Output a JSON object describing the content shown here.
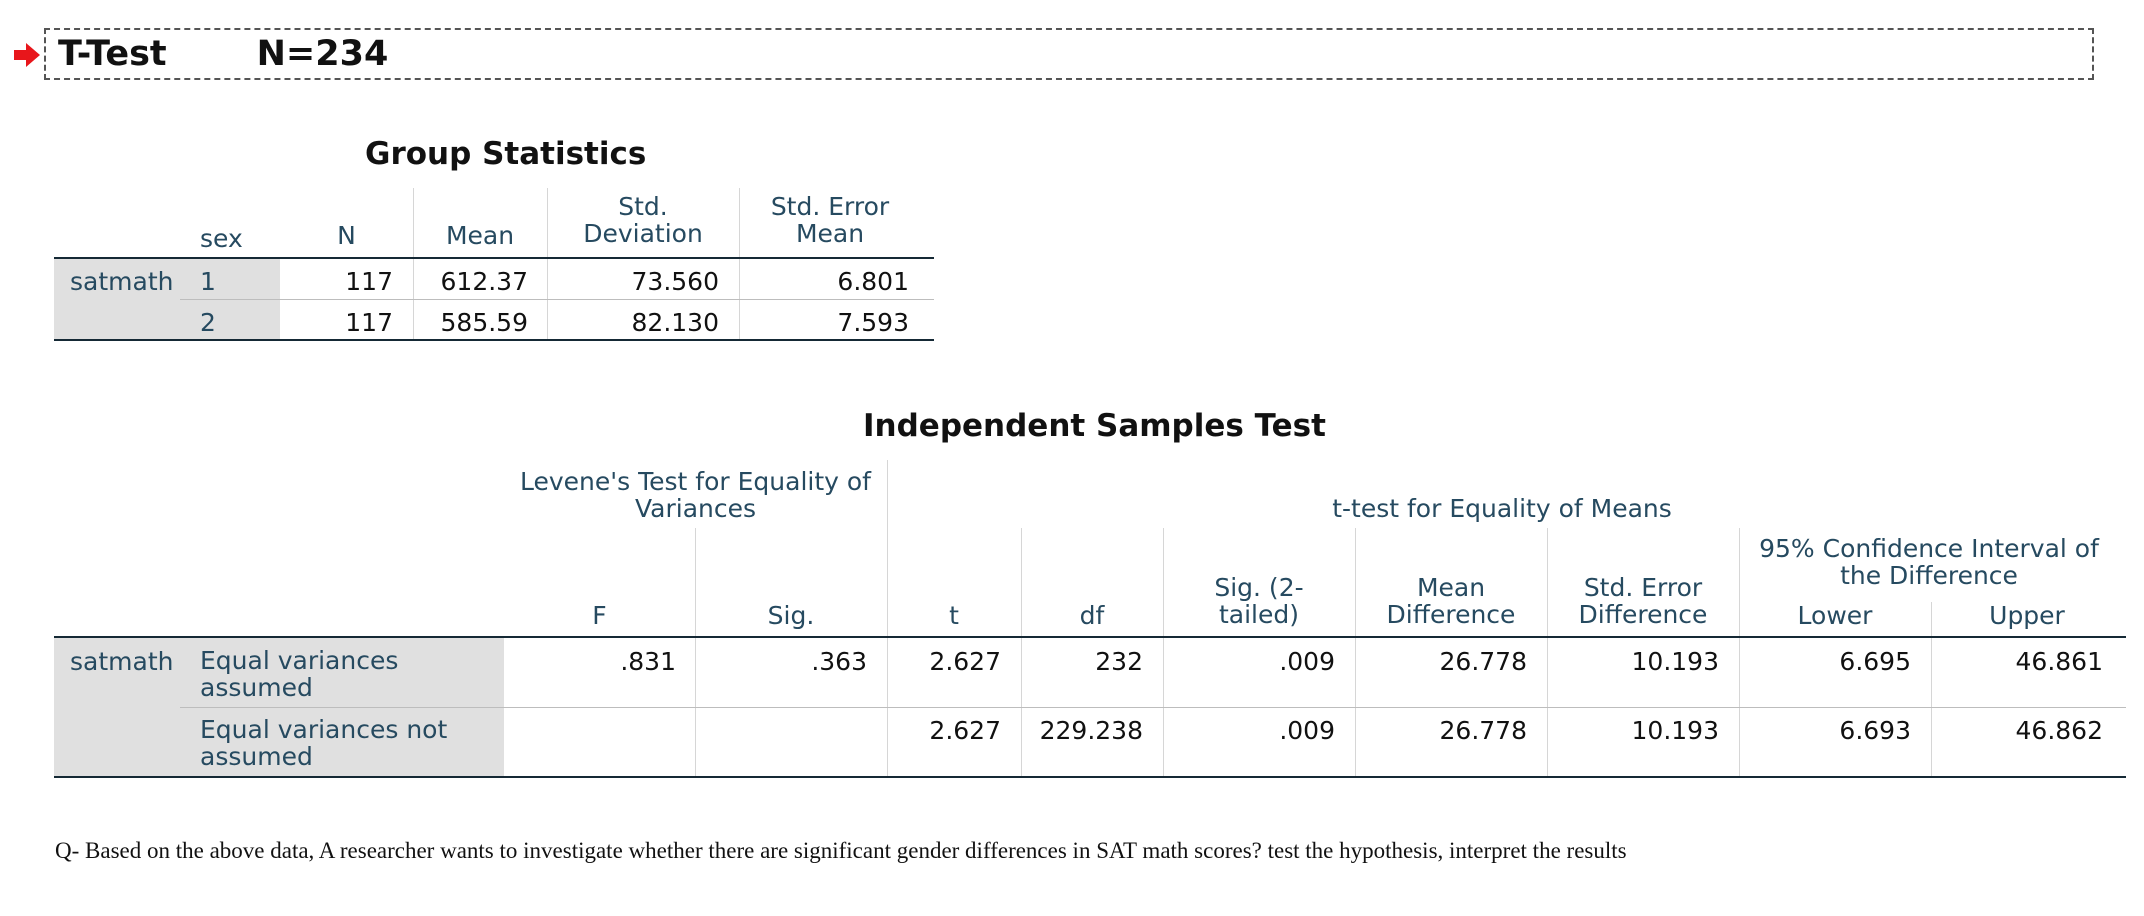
{
  "header": {
    "title": "T-Test",
    "n_label": "N=234"
  },
  "group_stats": {
    "title": "Group Statistics",
    "columns": [
      "sex",
      "N",
      "Mean",
      "Std. Deviation",
      "Std. Error Mean"
    ],
    "col_std_dev": [
      "Std.",
      "Deviation"
    ],
    "col_std_err": [
      "Std. Error",
      "Mean"
    ],
    "variable": "satmath",
    "rows": [
      {
        "sex": "1",
        "n": "117",
        "mean": "612.37",
        "sd": "73.560",
        "se": "6.801"
      },
      {
        "sex": "2",
        "n": "117",
        "mean": "585.59",
        "sd": "82.130",
        "se": "7.593"
      }
    ]
  },
  "ind_test": {
    "title": "Independent Samples Test",
    "levene_header": [
      "Levene's Test for Equality of",
      "Variances"
    ],
    "ttest_header": "t-test for Equality of Means",
    "ci_header": [
      "95% Confidence Interval of",
      "the Difference"
    ],
    "col_f": "F",
    "col_sig": "Sig.",
    "col_t": "t",
    "col_df": "df",
    "col_sig2": [
      "Sig. (2-",
      "tailed)"
    ],
    "col_md": [
      "Mean",
      "Difference"
    ],
    "col_sed": [
      "Std. Error",
      "Difference"
    ],
    "col_lower": "Lower",
    "col_upper": "Upper",
    "variable": "satmath",
    "rows": [
      {
        "label": [
          "Equal variances",
          "assumed"
        ],
        "f": ".831",
        "sig": ".363",
        "t": "2.627",
        "df": "232",
        "sig2": ".009",
        "md": "26.778",
        "sed": "10.193",
        "lower": "6.695",
        "upper": "46.861"
      },
      {
        "label": [
          "Equal variances not",
          "assumed"
        ],
        "f": "",
        "sig": "",
        "t": "2.627",
        "df": "229.238",
        "sig2": ".009",
        "md": "26.778",
        "sed": "10.193",
        "lower": "6.693",
        "upper": "46.862"
      }
    ]
  },
  "question": "Q- Based on the above data, A researcher wants to investigate whether there are significant gender differences in SAT math scores? test the hypothesis, interpret the results",
  "colors": {
    "label_text": "#264a60",
    "row_header_bg": "#e0e0e0",
    "arrow": "#e8161b"
  }
}
